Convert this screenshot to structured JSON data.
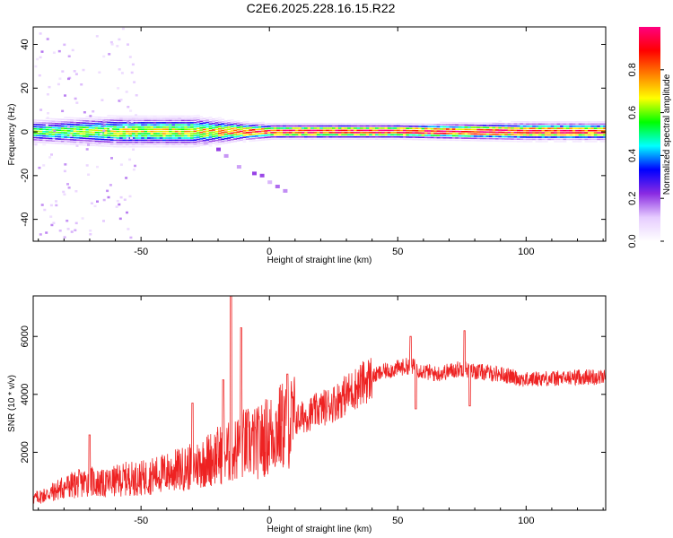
{
  "title": "C2E6.2025.228.16.15.R22",
  "chart_data": [
    {
      "type": "heatmap",
      "xlabel": "Height of straight line (km)",
      "ylabel": "Frequency (Hz)",
      "xlim": [
        -92,
        131
      ],
      "ylim": [
        -50,
        48
      ],
      "x_ticks": [
        -50,
        0,
        50,
        100
      ],
      "y_ticks": [
        -40,
        -20,
        0,
        20,
        40
      ],
      "colorbar": {
        "label": "Normalized spectral amplitude",
        "range": [
          0,
          1
        ],
        "ticks": [
          "0.0",
          "0.2",
          "0.4",
          "0.6",
          "0.8"
        ],
        "colors": [
          "#ffffff",
          "#e6ccff",
          "#8a2be2",
          "#0000ff",
          "#00ffff",
          "#00ff00",
          "#ffff00",
          "#ff8000",
          "#ff0000",
          "#ff0080"
        ]
      },
      "band": {
        "center_hz": 0,
        "description_points": [
          {
            "x": -92,
            "halfwidth_hz": 4,
            "peak": 0.6
          },
          {
            "x": -60,
            "halfwidth_hz": 5,
            "peak": 0.7
          },
          {
            "x": -30,
            "halfwidth_hz": 5,
            "peak": 0.75
          },
          {
            "x": -10,
            "halfwidth_hz": 3,
            "peak": 0.9
          },
          {
            "x": 0,
            "halfwidth_hz": 2.5,
            "peak": 1.0
          },
          {
            "x": 50,
            "halfwidth_hz": 2.5,
            "peak": 1.0
          },
          {
            "x": 100,
            "halfwidth_hz": 3,
            "peak": 1.0
          },
          {
            "x": 131,
            "halfwidth_hz": 3,
            "peak": 0.95
          }
        ],
        "tail": [
          {
            "x": -25,
            "y": -5
          },
          {
            "x": -20,
            "y": -8
          },
          {
            "x": -17,
            "y": -11
          },
          {
            "x": -12,
            "y": -16
          },
          {
            "x": -6,
            "y": -19
          },
          {
            "x": -3,
            "y": -20
          },
          {
            "x": 0,
            "y": -23
          },
          {
            "x": 3,
            "y": -25
          },
          {
            "x": 6,
            "y": -27
          }
        ]
      }
    },
    {
      "type": "line",
      "xlabel": "Height of straight line (km)",
      "ylabel": "SNR (10 * v/v)",
      "xlim": [
        -92,
        131
      ],
      "ylim": [
        0,
        7400
      ],
      "x_ticks": [
        -50,
        0,
        50,
        100
      ],
      "y_ticks": [
        2000,
        4000,
        6000
      ],
      "color": "#ee2222",
      "series": [
        {
          "values": [
            {
              "x": -92,
              "y": 400
            },
            {
              "x": -85,
              "y": 600
            },
            {
              "x": -80,
              "y": 800
            },
            {
              "x": -75,
              "y": 900
            },
            {
              "x": -70,
              "y": 1000
            },
            {
              "x": -65,
              "y": 900
            },
            {
              "x": -60,
              "y": 1000
            },
            {
              "x": -55,
              "y": 1100
            },
            {
              "x": -50,
              "y": 1100
            },
            {
              "x": -45,
              "y": 1200
            },
            {
              "x": -40,
              "y": 1300
            },
            {
              "x": -35,
              "y": 1400
            },
            {
              "x": -30,
              "y": 1500
            },
            {
              "x": -25,
              "y": 1700
            },
            {
              "x": -20,
              "y": 1900
            },
            {
              "x": -15,
              "y": 2000
            },
            {
              "x": -10,
              "y": 2300
            },
            {
              "x": -5,
              "y": 2300
            },
            {
              "x": 0,
              "y": 2600
            },
            {
              "x": 5,
              "y": 2900
            },
            {
              "x": 10,
              "y": 3100
            },
            {
              "x": 15,
              "y": 3300
            },
            {
              "x": 20,
              "y": 3500
            },
            {
              "x": 25,
              "y": 3700
            },
            {
              "x": 30,
              "y": 4000
            },
            {
              "x": 35,
              "y": 4300
            },
            {
              "x": 40,
              "y": 4600
            },
            {
              "x": 45,
              "y": 4800
            },
            {
              "x": 50,
              "y": 4900
            },
            {
              "x": 55,
              "y": 5000
            },
            {
              "x": 60,
              "y": 4800
            },
            {
              "x": 65,
              "y": 4700
            },
            {
              "x": 70,
              "y": 4800
            },
            {
              "x": 75,
              "y": 4900
            },
            {
              "x": 80,
              "y": 4800
            },
            {
              "x": 85,
              "y": 4750
            },
            {
              "x": 90,
              "y": 4700
            },
            {
              "x": 95,
              "y": 4600
            },
            {
              "x": 100,
              "y": 4500
            },
            {
              "x": 105,
              "y": 4550
            },
            {
              "x": 110,
              "y": 4550
            },
            {
              "x": 115,
              "y": 4550
            },
            {
              "x": 120,
              "y": 4600
            },
            {
              "x": 125,
              "y": 4600
            },
            {
              "x": 131,
              "y": 4600
            }
          ],
          "spikes": [
            {
              "x": -70,
              "y": 2600
            },
            {
              "x": -30,
              "y": 3700
            },
            {
              "x": -18,
              "y": 4500
            },
            {
              "x": -15,
              "y": 7400
            },
            {
              "x": -11,
              "y": 6300
            },
            {
              "x": 7,
              "y": 4700
            },
            {
              "x": 55,
              "y": 6000
            },
            {
              "x": 57,
              "y": 3500
            },
            {
              "x": 76,
              "y": 6200
            },
            {
              "x": 78,
              "y": 3600
            }
          ]
        }
      ]
    }
  ]
}
